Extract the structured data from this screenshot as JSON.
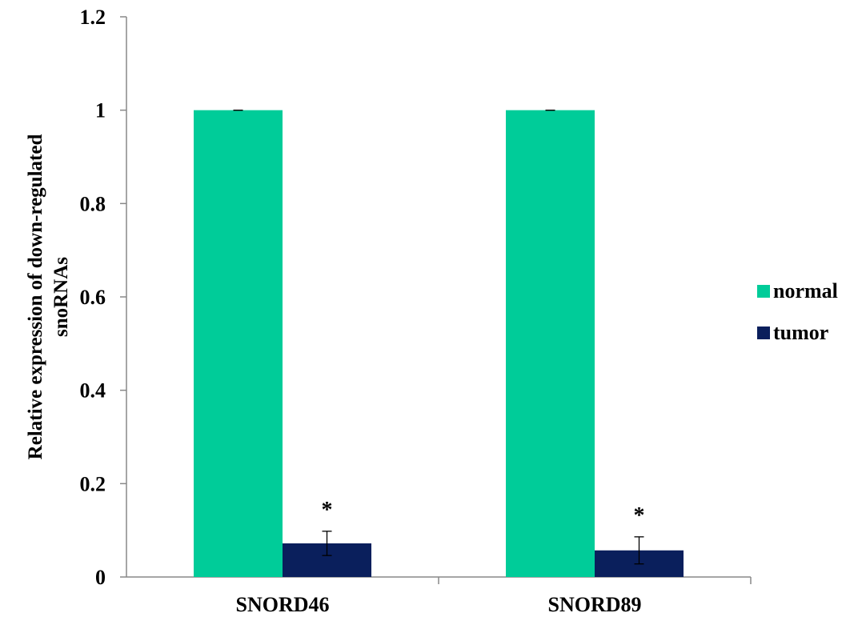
{
  "chart_data": {
    "type": "bar",
    "title": "",
    "xlabel": "",
    "ylabel_lines": [
      "Relative expression of down-regulated",
      "snoRNAs"
    ],
    "categories": [
      "SNORD46",
      "SNORD89"
    ],
    "series": [
      {
        "name": "normal",
        "color": "#00CC99",
        "values": [
          1.0,
          1.0
        ],
        "errors": [
          0.0,
          0.0
        ]
      },
      {
        "name": "tumor",
        "color": "#0A1F5C",
        "values": [
          0.072,
          0.057
        ],
        "errors": [
          0.026,
          0.029
        ]
      }
    ],
    "ylim": [
      0,
      1.2
    ],
    "yticks": [
      0,
      0.2,
      0.4,
      0.6,
      0.8,
      1,
      1.2
    ],
    "ytick_labels": [
      "0",
      "0.2",
      "0.4",
      "0.6",
      "0.8",
      "1",
      "1.2"
    ],
    "annotations": [
      "*",
      "*"
    ],
    "grid": false,
    "legend_position": "right"
  }
}
